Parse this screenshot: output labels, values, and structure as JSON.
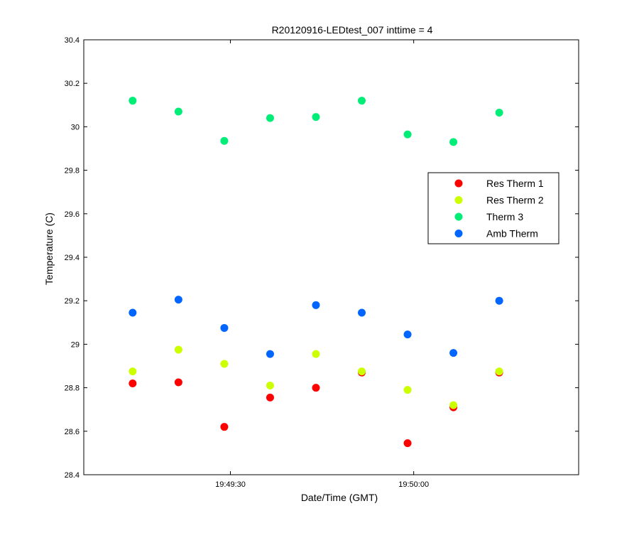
{
  "chart_data": {
    "type": "scatter",
    "title": "R20120916-LEDtest_007 inttime = 4",
    "xlabel": "Date/Time (GMT)",
    "ylabel": "Temperature (C)",
    "xlim": [
      "19:49:06",
      "19:50:27"
    ],
    "ylim": [
      28.4,
      30.4
    ],
    "x_ticks": [
      "19:49:30",
      "19:50:00"
    ],
    "y_ticks": [
      "28.4",
      "28.6",
      "28.8",
      "29",
      "29.2",
      "29.4",
      "29.6",
      "29.8",
      "30",
      "30.2",
      "30.4"
    ],
    "x": [
      "19:49:14",
      "19:49:21.5",
      "19:49:29",
      "19:49:36.5",
      "19:49:44",
      "19:49:51.5",
      "19:49:59",
      "19:50:06.5",
      "19:50:14"
    ],
    "series": [
      {
        "name": "Res Therm 1",
        "color": "#ff0000",
        "values": [
          28.82,
          28.825,
          28.62,
          28.755,
          28.8,
          28.87,
          28.545,
          28.71,
          28.87
        ]
      },
      {
        "name": "Res Therm 2",
        "color": "#ccff00",
        "values": [
          28.875,
          28.975,
          28.91,
          28.81,
          28.955,
          28.875,
          28.79,
          28.72,
          28.875
        ]
      },
      {
        "name": "Therm 3",
        "color": "#00ee77",
        "values": [
          30.12,
          30.07,
          29.935,
          30.04,
          30.045,
          30.12,
          29.965,
          29.93,
          30.065
        ]
      },
      {
        "name": "Amb Therm",
        "color": "#0066ff",
        "values": [
          29.145,
          29.205,
          29.075,
          28.955,
          29.18,
          29.145,
          29.045,
          28.96,
          29.2
        ]
      }
    ],
    "legend_position": "right",
    "grid": false
  }
}
